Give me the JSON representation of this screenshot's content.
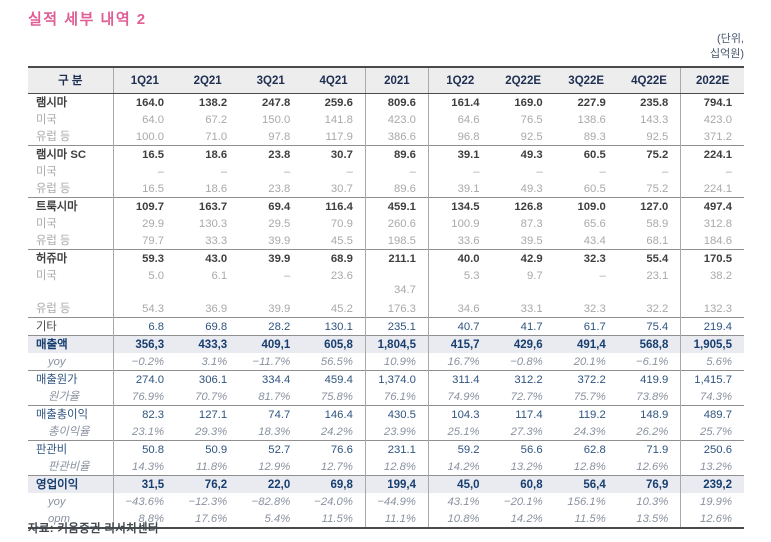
{
  "title": "실적 세부 내역 2",
  "unit_note": {
    "line1": "(단위,",
    "line2": "십억원)"
  },
  "source": "자료: 키움증권 리서치센터",
  "colors": {
    "title_pink": "#df5f96",
    "header_bg": "#ededed",
    "highlight_row_bg": "#e9ebf1",
    "navy_text": "#2f547f",
    "bold_navy_text": "#183e70",
    "sub_gray_text": "#a9a9a9",
    "pct_gray_text": "#8a92a0"
  },
  "chart_data": {
    "type": "table",
    "title": "실적 세부 내역 2 (단위: 십억원)",
    "columns": [
      "구 분",
      "1Q21",
      "2Q21",
      "3Q21",
      "4Q21",
      "2021",
      "1Q22",
      "2Q22E",
      "3Q22E",
      "4Q22E",
      "2022E"
    ],
    "rows": [
      {
        "label": "램시마",
        "type": "section",
        "sep": true,
        "values": [
          "164.0",
          "138.2",
          "247.8",
          "259.6",
          "809.6",
          "161.4",
          "169.0",
          "227.9",
          "235.8",
          "794.1"
        ]
      },
      {
        "label": "미국",
        "type": "sub",
        "values": [
          "64.0",
          "67.2",
          "150.0",
          "141.8",
          "423.0",
          "64.6",
          "76.5",
          "138.6",
          "143.3",
          "423.0"
        ]
      },
      {
        "label": "유럽 등",
        "type": "sub",
        "values": [
          "100.0",
          "71.0",
          "97.8",
          "117.9",
          "386.6",
          "96.8",
          "92.5",
          "89.3",
          "92.5",
          "371.2"
        ]
      },
      {
        "label": "램시마 SC",
        "type": "section",
        "sep": true,
        "values": [
          "16.5",
          "18.6",
          "23.8",
          "30.7",
          "89.6",
          "39.1",
          "49.3",
          "60.5",
          "75.2",
          "224.1"
        ]
      },
      {
        "label": "미국",
        "type": "sub",
        "values": [
          "–",
          "–",
          "–",
          "–",
          "–",
          "–",
          "–",
          "–",
          "–",
          "–"
        ]
      },
      {
        "label": "유럽 등",
        "type": "sub",
        "values": [
          "16.5",
          "18.6",
          "23.8",
          "30.7",
          "89.6",
          "39.1",
          "49.3",
          "60.5",
          "75.2",
          "224.1"
        ]
      },
      {
        "label": "트룩시마",
        "type": "section",
        "sep": true,
        "values": [
          "109.7",
          "163.7",
          "69.4",
          "116.4",
          "459.1",
          "134.5",
          "126.8",
          "109.0",
          "127.0",
          "497.4"
        ]
      },
      {
        "label": "미국",
        "type": "sub",
        "values": [
          "29.9",
          "130.3",
          "29.5",
          "70.9",
          "260.6",
          "100.9",
          "87.3",
          "65.6",
          "58.9",
          "312.8"
        ]
      },
      {
        "label": "유럽 등",
        "type": "sub",
        "values": [
          "79.7",
          "33.3",
          "39.9",
          "45.5",
          "198.5",
          "33.6",
          "39.5",
          "43.4",
          "68.1",
          "184.6"
        ]
      },
      {
        "label": "허쥬마",
        "type": "section",
        "sep": true,
        "values": [
          "59.3",
          "43.0",
          "39.9",
          "68.9",
          "211.1",
          "40.0",
          "42.9",
          "32.3",
          "55.4",
          "170.5"
        ]
      },
      {
        "label": "미국",
        "type": "sub",
        "tall": true,
        "drop_col": 4,
        "values": [
          "5.0",
          "6.1",
          "–",
          "23.6",
          "34.7",
          "5.3",
          "9.7",
          "–",
          "23.1",
          "38.2"
        ]
      },
      {
        "label": "유럽 등",
        "type": "sub",
        "values": [
          "54.3",
          "36.9",
          "39.9",
          "45.2",
          "176.3",
          "34.6",
          "33.1",
          "32.3",
          "32.2",
          "132.3"
        ]
      },
      {
        "label": "기타",
        "type": "other",
        "sep": true,
        "values": [
          "6.8",
          "69.8",
          "28.2",
          "130.1",
          "235.1",
          "40.7",
          "41.7",
          "61.7",
          "75.4",
          "219.4"
        ]
      },
      {
        "label": "매출액",
        "type": "hl",
        "sep": true,
        "values": [
          "356,3",
          "433,3",
          "409,1",
          "605,8",
          "1,804,5",
          "415,7",
          "429,6",
          "491,4",
          "568,8",
          "1,905,5"
        ]
      },
      {
        "label": "yoy",
        "type": "pct",
        "values": [
          "−0.2%",
          "3.1%",
          "−11.7%",
          "56.5%",
          "10.9%",
          "16.7%",
          "−0.8%",
          "20.1%",
          "−6.1%",
          "5.6%"
        ]
      },
      {
        "label": "매출원가",
        "type": "navy",
        "sep": true,
        "values": [
          "274.0",
          "306.1",
          "334.4",
          "459.4",
          "1,374.0",
          "311.4",
          "312.2",
          "372.2",
          "419.9",
          "1,415.7"
        ]
      },
      {
        "label": "원가율",
        "type": "pct",
        "values": [
          "76.9%",
          "70.7%",
          "81.7%",
          "75.8%",
          "76.1%",
          "74.9%",
          "72.7%",
          "75.7%",
          "73.8%",
          "74.3%"
        ]
      },
      {
        "label": "매출총이익",
        "type": "navy",
        "sep": true,
        "values": [
          "82.3",
          "127.1",
          "74.7",
          "146.4",
          "430.5",
          "104.3",
          "117.4",
          "119.2",
          "148.9",
          "489.7"
        ]
      },
      {
        "label": "총이익율",
        "type": "pct",
        "values": [
          "23.1%",
          "29.3%",
          "18.3%",
          "24.2%",
          "23.9%",
          "25.1%",
          "27.3%",
          "24.3%",
          "26.2%",
          "25.7%"
        ]
      },
      {
        "label": "판관비",
        "type": "navy",
        "sep": true,
        "values": [
          "50.8",
          "50.9",
          "52.7",
          "76.6",
          "231.1",
          "59.2",
          "56.6",
          "62.8",
          "71.9",
          "250.6"
        ]
      },
      {
        "label": "판관비율",
        "type": "pct",
        "values": [
          "14.3%",
          "11.8%",
          "12.9%",
          "12.7%",
          "12.8%",
          "14.2%",
          "13.2%",
          "12.8%",
          "12.6%",
          "13.2%"
        ]
      },
      {
        "label": "영업이익",
        "type": "hl",
        "sep": true,
        "values": [
          "31,5",
          "76,2",
          "22,0",
          "69,8",
          "199,4",
          "45,0",
          "60,8",
          "56,4",
          "76,9",
          "239,2"
        ]
      },
      {
        "label": "yoy",
        "type": "pct",
        "values": [
          "−43.6%",
          "−12.3%",
          "−82.8%",
          "−24.0%",
          "−44.9%",
          "43.1%",
          "−20.1%",
          "156.1%",
          "10.3%",
          "19.9%"
        ]
      },
      {
        "label": "opm",
        "type": "pct",
        "values": [
          "8.8%",
          "17.6%",
          "5.4%",
          "11.5%",
          "11.1%",
          "10.8%",
          "14.2%",
          "11.5%",
          "13.5%",
          "12.6%"
        ]
      }
    ]
  }
}
